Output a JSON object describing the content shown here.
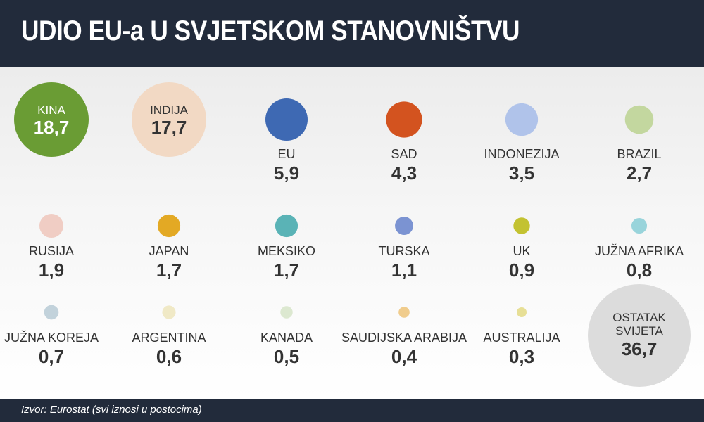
{
  "header": {
    "title": "UDIO EU-a U SVJETSKOM STANOVNIŠTVU"
  },
  "footer": {
    "source": "Izvor: Eurostat (svi iznosi u postocima)"
  },
  "chart_data": {
    "type": "bubble",
    "title": "UDIO EU-a U SVJETSKOM STANOVNIŠTVU",
    "unit": "%",
    "items": [
      {
        "label": "KINA",
        "value": 18.7,
        "display": "18,7",
        "color": "#6a9c34"
      },
      {
        "label": "INDIJA",
        "value": 17.7,
        "display": "17,7",
        "color": "#f2d9c4"
      },
      {
        "label": "EU",
        "value": 5.9,
        "display": "5,9",
        "color": "#3e69b3"
      },
      {
        "label": "SAD",
        "value": 4.3,
        "display": "4,3",
        "color": "#d3531f"
      },
      {
        "label": "INDONEZIJA",
        "value": 3.5,
        "display": "3,5",
        "color": "#b0c3ea"
      },
      {
        "label": "BRAZIL",
        "value": 2.7,
        "display": "2,7",
        "color": "#c3d79f"
      },
      {
        "label": "RUSIJA",
        "value": 1.9,
        "display": "1,9",
        "color": "#f0cdc4"
      },
      {
        "label": "JAPAN",
        "value": 1.7,
        "display": "1,7",
        "color": "#e3a924"
      },
      {
        "label": "MEKSIKO",
        "value": 1.7,
        "display": "1,7",
        "color": "#5ab3b6"
      },
      {
        "label": "TURSKA",
        "value": 1.1,
        "display": "1,1",
        "color": "#7b93d2"
      },
      {
        "label": "UK",
        "value": 0.9,
        "display": "0,9",
        "color": "#c3c231"
      },
      {
        "label": "JUŽNA AFRIKA",
        "value": 0.8,
        "display": "0,8",
        "color": "#99d4db"
      },
      {
        "label": "JUŽNA KOREJA",
        "value": 0.7,
        "display": "0,7",
        "color": "#c2d2db"
      },
      {
        "label": "ARGENTINA",
        "value": 0.6,
        "display": "0,6",
        "color": "#f0e9c6"
      },
      {
        "label": "KANADA",
        "value": 0.5,
        "display": "0,5",
        "color": "#dce8d0"
      },
      {
        "label": "SAUDIJSKA ARABIJA",
        "value": 0.4,
        "display": "0,4",
        "color": "#f0cc8c"
      },
      {
        "label": "AUSTRALIJA",
        "value": 0.3,
        "display": "0,3",
        "color": "#e7df96"
      },
      {
        "label": "OSTATAK SVIJETA",
        "value": 36.7,
        "display": "36,7",
        "color": "#dcdcdc"
      }
    ]
  }
}
